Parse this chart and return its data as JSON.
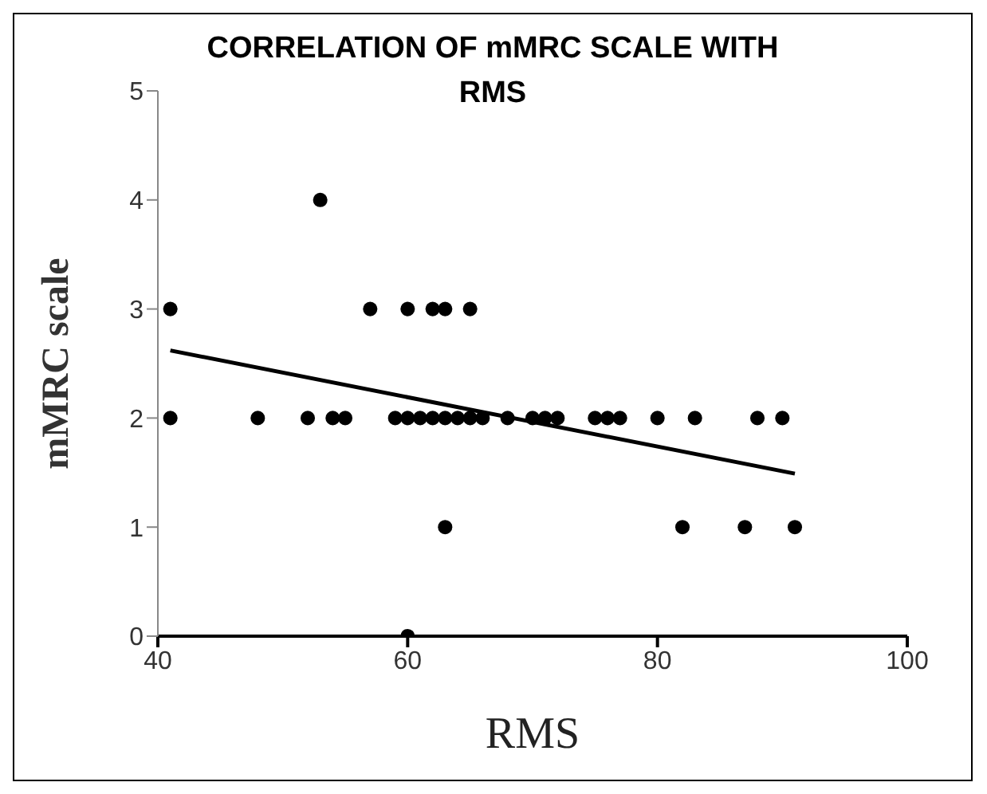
{
  "chart_data": {
    "type": "scatter",
    "title": "CORRELATION OF mMRC SCALE WITH RMS",
    "xlabel": "RMS",
    "ylabel": "mMRC scale",
    "xlim": [
      40,
      100
    ],
    "xticks": [
      40,
      60,
      80,
      100
    ],
    "ylim": [
      0,
      5
    ],
    "yticks": [
      0,
      1,
      2,
      3,
      4,
      5
    ],
    "grid": false,
    "legend": false,
    "marker": "circle",
    "series": [
      {
        "color": "#000000",
        "x": [
          41,
          48,
          52,
          54,
          55,
          59,
          60,
          61,
          62,
          63,
          64,
          65,
          66,
          68,
          70,
          71,
          72,
          75,
          76,
          77,
          80,
          83,
          88,
          90,
          41,
          57,
          60,
          62,
          63,
          65,
          53,
          63,
          82,
          87,
          91,
          60
        ],
        "values": [
          2,
          2,
          2,
          2,
          2,
          2,
          2,
          2,
          2,
          2,
          2,
          2,
          2,
          2,
          2,
          2,
          2,
          2,
          2,
          2,
          2,
          2,
          2,
          2,
          3,
          3,
          3,
          3,
          3,
          3,
          4,
          1,
          1,
          1,
          1,
          0
        ]
      },
      {
        "type": "line",
        "color": "#000000",
        "x": [
          41,
          91
        ],
        "values": [
          2.62,
          1.49
        ],
        "marker": "none",
        "line_style": "solid"
      }
    ]
  }
}
